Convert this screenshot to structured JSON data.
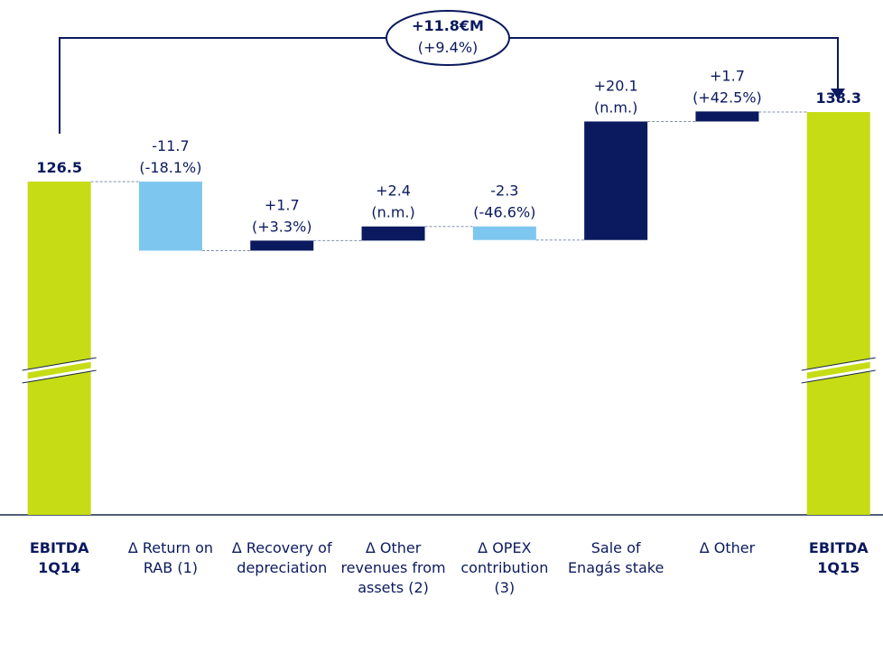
{
  "chart_data": {
    "type": "waterfall",
    "categories": [
      "EBITDA 1Q14",
      "Δ Return on RAB (1)",
      "Δ Recovery of depreciation",
      "Δ Other revenues from assets (2)",
      "Δ OPEX contribution (3)",
      "Sale of Enagás stake",
      "Δ Other",
      "EBITDA 1Q15"
    ],
    "values": [
      126.5,
      -11.7,
      1.7,
      2.4,
      -2.3,
      20.1,
      1.7,
      138.3
    ],
    "value_labels": [
      "126.5",
      "-11.7",
      "+1.7",
      "+2.4",
      "-2.3",
      "+20.1",
      "+1.7",
      "138.3"
    ],
    "pct_labels": [
      null,
      "(-18.1%)",
      "(+3.3%)",
      "(n.m.)",
      "(-46.6%)",
      "(n.m.)",
      "(+42.5%)",
      null
    ],
    "annotation": "+11.8€M",
    "annotation_sub": "(+9.4%)",
    "ylim": [
      70,
      155
    ],
    "axis_break": true,
    "colors": {
      "total": "#c6dc14",
      "increase": "#0b1a5e",
      "decrease": "#7dc6ef"
    }
  }
}
